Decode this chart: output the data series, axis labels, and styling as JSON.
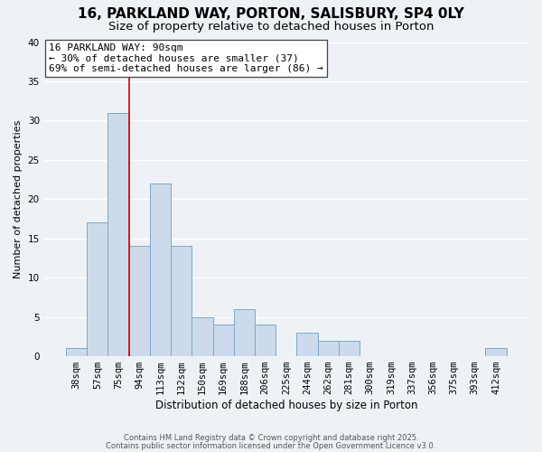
{
  "title": "16, PARKLAND WAY, PORTON, SALISBURY, SP4 0LY",
  "subtitle": "Size of property relative to detached houses in Porton",
  "xlabel": "Distribution of detached houses by size in Porton",
  "ylabel": "Number of detached properties",
  "bar_color": "#cddaeb",
  "bar_edge_color": "#7aaac8",
  "background_color": "#eef2f7",
  "grid_color": "#ffffff",
  "categories": [
    "38sqm",
    "57sqm",
    "75sqm",
    "94sqm",
    "113sqm",
    "132sqm",
    "150sqm",
    "169sqm",
    "188sqm",
    "206sqm",
    "225sqm",
    "244sqm",
    "262sqm",
    "281sqm",
    "300sqm",
    "319sqm",
    "337sqm",
    "356sqm",
    "375sqm",
    "393sqm",
    "412sqm"
  ],
  "values": [
    1,
    17,
    31,
    14,
    22,
    14,
    5,
    4,
    6,
    4,
    0,
    3,
    2,
    2,
    0,
    0,
    0,
    0,
    0,
    0,
    1
  ],
  "ylim": [
    0,
    40
  ],
  "vline_x": 2.5,
  "vline_color": "#cc0000",
  "annotation_text": "16 PARKLAND WAY: 90sqm\n← 30% of detached houses are smaller (37)\n69% of semi-detached houses are larger (86) →",
  "footer1": "Contains HM Land Registry data © Crown copyright and database right 2025.",
  "footer2": "Contains public sector information licensed under the Open Government Licence v3.0.",
  "title_fontsize": 11,
  "subtitle_fontsize": 9.5,
  "annotation_fontsize": 8,
  "xlabel_fontsize": 8.5,
  "ylabel_fontsize": 8,
  "tick_fontsize": 7.5,
  "footer_fontsize": 6
}
